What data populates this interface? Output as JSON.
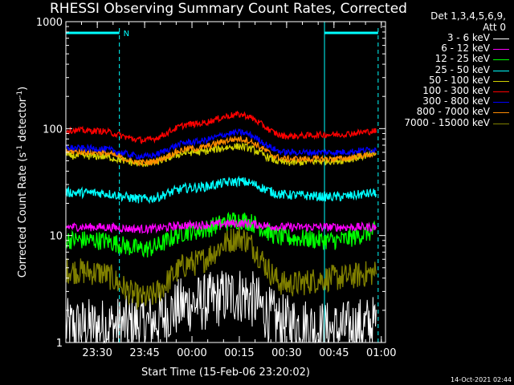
{
  "chart_data": {
    "type": "line",
    "title": "RHESSI Observing Summary Count Rates, Corrected",
    "xlabel": "Start Time (15-Feb-06 23:20:02)",
    "ylabel": "Corrected Count Rate (s^-1 detector^-1)",
    "ylabel_parts": {
      "main": "Corrected Count Rate (s",
      "sup1": "-1",
      "mid": " detector",
      "sup2": "-1",
      "end": ")"
    },
    "y_scale": "log",
    "ylim": [
      1,
      1000
    ],
    "y_ticks": [
      "1",
      "10",
      "100",
      "1000"
    ],
    "xlim": [
      "15-Feb-06 23:20:02",
      "16-Feb-06 01:01:20"
    ],
    "x_ticks": [
      "23:30",
      "23:45",
      "00:00",
      "00:15",
      "00:30",
      "00:45",
      "01:00"
    ],
    "detectors_label": "Det 1,3,4,5,6,9,",
    "attenuator_label": "Att 0",
    "night_flag_label": "N",
    "night_periods": [
      [
        "15-Feb-06 23:20:02",
        "15-Feb-06 23:37:00"
      ],
      [
        "16-Feb-06 00:42:00",
        "16-Feb-06 00:59:00"
      ]
    ],
    "series": [
      {
        "name": "3 - 6 keV",
        "color": "#ffffff",
        "values_at_x_ticks": [
          1.4,
          1.5,
          2.3,
          2.8,
          1.5,
          1.3,
          1.5
        ]
      },
      {
        "name": "6 - 12 keV",
        "color": "#ff00ff",
        "values_at_x_ticks": [
          12,
          11.5,
          12.5,
          13,
          12,
          12,
          12
        ]
      },
      {
        "name": "12 - 25 keV",
        "color": "#00ff00",
        "values_at_x_ticks": [
          9,
          7.5,
          11,
          14,
          9.5,
          9,
          11
        ]
      },
      {
        "name": "25 - 50 keV",
        "color": "#00ffff",
        "values_at_x_ticks": [
          25,
          22,
          28,
          32,
          24,
          23,
          25
        ]
      },
      {
        "name": "50 - 100 keV",
        "color": "#d2d200",
        "values_at_x_ticks": [
          55,
          47,
          60,
          68,
          48,
          50,
          58
        ]
      },
      {
        "name": "100 - 300 keV",
        "color": "#ff0000",
        "values_at_x_ticks": [
          95,
          78,
          110,
          135,
          85,
          88,
          95
        ]
      },
      {
        "name": "300 - 800 keV",
        "color": "#0000ff",
        "values_at_x_ticks": [
          65,
          55,
          75,
          92,
          60,
          60,
          64
        ]
      },
      {
        "name": "800 - 7000 keV",
        "color": "#ff8c00",
        "values_at_x_ticks": [
          60,
          48,
          65,
          80,
          52,
          52,
          58
        ]
      },
      {
        "name": "7000 - 15000 keV",
        "color": "#808000",
        "values_at_x_ticks": [
          4.5,
          2.6,
          5.5,
          9.5,
          3.5,
          4,
          4.5
        ]
      }
    ]
  },
  "footer": {
    "generated": "14-Oct-2021 02:44"
  }
}
